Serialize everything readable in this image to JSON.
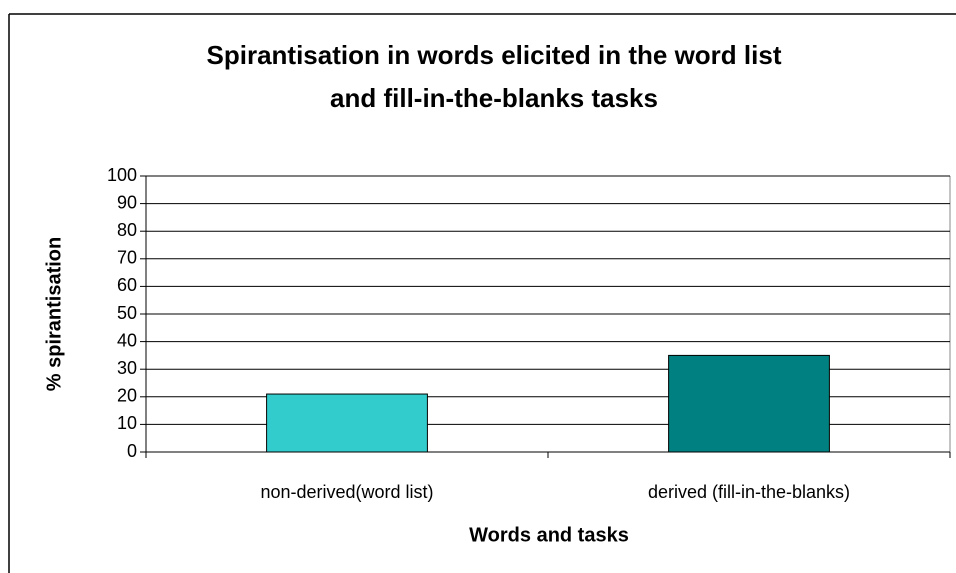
{
  "chart_data": {
    "type": "bar",
    "title": [
      "Spirantisation in words elicited in the word list",
      "and fill-in-the-blanks tasks"
    ],
    "xlabel": "Words and tasks",
    "ylabel": "% spirantisation",
    "categories": [
      "non-derived(word list)",
      "derived (fill-in-the-blanks)"
    ],
    "values": [
      21,
      35
    ],
    "colors": [
      "#33cccc",
      "#008080"
    ],
    "ylim": [
      0,
      100
    ],
    "yticks": [
      0,
      10,
      20,
      30,
      40,
      50,
      60,
      70,
      80,
      90,
      100
    ],
    "grid": true
  }
}
